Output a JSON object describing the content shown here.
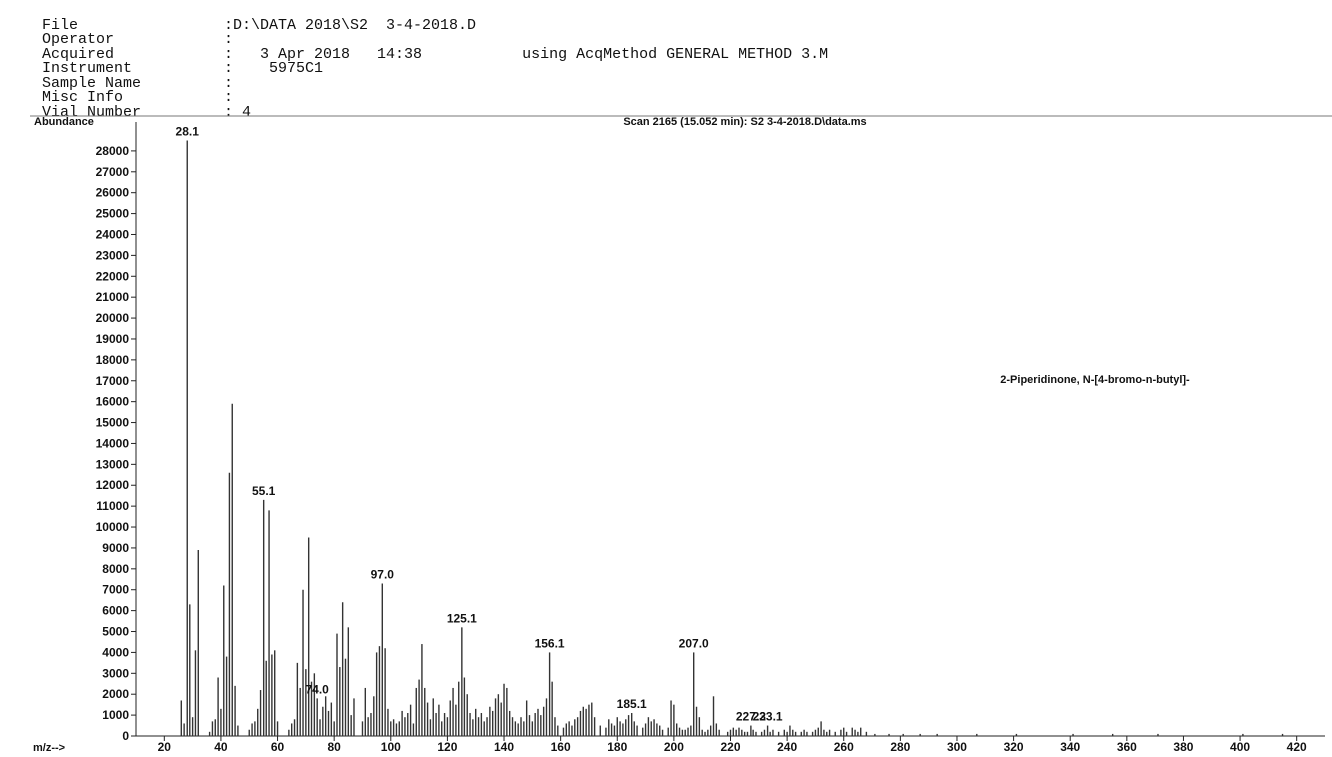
{
  "header": {
    "file": {
      "key": "File",
      "value": ":D:\\DATA 2018\\S2  3-4-2018.D"
    },
    "operator": {
      "key": "Operator",
      "value": ":"
    },
    "acquired": {
      "key": "Acquired",
      "value": ":   3 Apr 2018   14:38",
      "method": "using AcqMethod GENERAL METHOD 3.M"
    },
    "instrument": {
      "key": "Instrument",
      "value": ":    5975C1"
    },
    "sample_name": {
      "key": "Sample Name",
      "value": ":"
    },
    "misc_info": {
      "key": "Misc Info",
      "value": ":"
    },
    "vial_number": {
      "key": "Vial Number",
      "value": ": 4"
    }
  },
  "chart_data": {
    "type": "bar",
    "title": "Scan 2165 (15.052 min): S2  3-4-2018.D\\data.ms",
    "ylabel": "Abundance",
    "xlabel": "m/z-->",
    "annotation": "2-Piperidinone, N-[4-bromo-n-butyl]-",
    "xlim": [
      10,
      430
    ],
    "ylim": [
      0,
      29000
    ],
    "xticks": [
      20,
      40,
      60,
      80,
      100,
      120,
      140,
      160,
      180,
      200,
      220,
      240,
      260,
      280,
      300,
      320,
      340,
      360,
      380,
      400,
      420
    ],
    "yticks": [
      0,
      1000,
      2000,
      3000,
      4000,
      5000,
      6000,
      7000,
      8000,
      9000,
      10000,
      11000,
      12000,
      13000,
      14000,
      15000,
      16000,
      17000,
      18000,
      19000,
      20000,
      21000,
      22000,
      23000,
      24000,
      25000,
      26000,
      27000,
      28000
    ],
    "peak_labels": [
      {
        "mz": 28.1,
        "text": "28.1"
      },
      {
        "mz": 55.1,
        "text": "55.1"
      },
      {
        "mz": 74.0,
        "text": "74.0"
      },
      {
        "mz": 97.0,
        "text": "97.0"
      },
      {
        "mz": 125.1,
        "text": "125.1"
      },
      {
        "mz": 156.1,
        "text": "156.1"
      },
      {
        "mz": 185.1,
        "text": "185.1"
      },
      {
        "mz": 207.0,
        "text": "207.0"
      },
      {
        "mz": 227.2,
        "text": "227.2"
      },
      {
        "mz": 233.1,
        "text": "233.1"
      }
    ],
    "peaks": [
      {
        "mz": 26,
        "abundance": 1700
      },
      {
        "mz": 27,
        "abundance": 600
      },
      {
        "mz": 28.1,
        "abundance": 28500
      },
      {
        "mz": 29,
        "abundance": 6300
      },
      {
        "mz": 30,
        "abundance": 900
      },
      {
        "mz": 31,
        "abundance": 4100
      },
      {
        "mz": 32,
        "abundance": 8900
      },
      {
        "mz": 36,
        "abundance": 200
      },
      {
        "mz": 37,
        "abundance": 700
      },
      {
        "mz": 38,
        "abundance": 800
      },
      {
        "mz": 39,
        "abundance": 2800
      },
      {
        "mz": 40,
        "abundance": 1300
      },
      {
        "mz": 41,
        "abundance": 7200
      },
      {
        "mz": 42,
        "abundance": 3800
      },
      {
        "mz": 43,
        "abundance": 12600
      },
      {
        "mz": 44,
        "abundance": 15900
      },
      {
        "mz": 45,
        "abundance": 2400
      },
      {
        "mz": 46,
        "abundance": 500
      },
      {
        "mz": 50,
        "abundance": 300
      },
      {
        "mz": 51,
        "abundance": 600
      },
      {
        "mz": 52,
        "abundance": 700
      },
      {
        "mz": 53,
        "abundance": 1300
      },
      {
        "mz": 54,
        "abundance": 2200
      },
      {
        "mz": 55.1,
        "abundance": 11300
      },
      {
        "mz": 56,
        "abundance": 3600
      },
      {
        "mz": 57,
        "abundance": 10800
      },
      {
        "mz": 58,
        "abundance": 3900
      },
      {
        "mz": 59,
        "abundance": 4100
      },
      {
        "mz": 60,
        "abundance": 700
      },
      {
        "mz": 64,
        "abundance": 300
      },
      {
        "mz": 65,
        "abundance": 600
      },
      {
        "mz": 66,
        "abundance": 800
      },
      {
        "mz": 67,
        "abundance": 3500
      },
      {
        "mz": 68,
        "abundance": 2300
      },
      {
        "mz": 69,
        "abundance": 7000
      },
      {
        "mz": 70,
        "abundance": 3200
      },
      {
        "mz": 71,
        "abundance": 9500
      },
      {
        "mz": 72,
        "abundance": 2600
      },
      {
        "mz": 73,
        "abundance": 3000
      },
      {
        "mz": 74.0,
        "abundance": 1800
      },
      {
        "mz": 75,
        "abundance": 800
      },
      {
        "mz": 76,
        "abundance": 1400
      },
      {
        "mz": 77,
        "abundance": 1900
      },
      {
        "mz": 78,
        "abundance": 1200
      },
      {
        "mz": 79,
        "abundance": 1600
      },
      {
        "mz": 80,
        "abundance": 700
      },
      {
        "mz": 81,
        "abundance": 4900
      },
      {
        "mz": 82,
        "abundance": 3300
      },
      {
        "mz": 83,
        "abundance": 6400
      },
      {
        "mz": 84,
        "abundance": 3700
      },
      {
        "mz": 85,
        "abundance": 5200
      },
      {
        "mz": 86,
        "abundance": 1000
      },
      {
        "mz": 87,
        "abundance": 1800
      },
      {
        "mz": 90,
        "abundance": 700
      },
      {
        "mz": 91,
        "abundance": 2300
      },
      {
        "mz": 92,
        "abundance": 900
      },
      {
        "mz": 93,
        "abundance": 1100
      },
      {
        "mz": 94,
        "abundance": 1900
      },
      {
        "mz": 95,
        "abundance": 4000
      },
      {
        "mz": 96,
        "abundance": 4300
      },
      {
        "mz": 97.0,
        "abundance": 7300
      },
      {
        "mz": 98,
        "abundance": 4200
      },
      {
        "mz": 99,
        "abundance": 1300
      },
      {
        "mz": 100,
        "abundance": 700
      },
      {
        "mz": 101,
        "abundance": 800
      },
      {
        "mz": 102,
        "abundance": 600
      },
      {
        "mz": 103,
        "abundance": 700
      },
      {
        "mz": 104,
        "abundance": 1200
      },
      {
        "mz": 105,
        "abundance": 900
      },
      {
        "mz": 106,
        "abundance": 1100
      },
      {
        "mz": 107,
        "abundance": 1500
      },
      {
        "mz": 108,
        "abundance": 600
      },
      {
        "mz": 109,
        "abundance": 2300
      },
      {
        "mz": 110,
        "abundance": 2700
      },
      {
        "mz": 111,
        "abundance": 4400
      },
      {
        "mz": 112,
        "abundance": 2300
      },
      {
        "mz": 113,
        "abundance": 1600
      },
      {
        "mz": 114,
        "abundance": 800
      },
      {
        "mz": 115,
        "abundance": 1800
      },
      {
        "mz": 116,
        "abundance": 1100
      },
      {
        "mz": 117,
        "abundance": 1500
      },
      {
        "mz": 118,
        "abundance": 700
      },
      {
        "mz": 119,
        "abundance": 1100
      },
      {
        "mz": 120,
        "abundance": 900
      },
      {
        "mz": 121,
        "abundance": 1700
      },
      {
        "mz": 122,
        "abundance": 2300
      },
      {
        "mz": 123,
        "abundance": 1500
      },
      {
        "mz": 124,
        "abundance": 2600
      },
      {
        "mz": 125.1,
        "abundance": 5200
      },
      {
        "mz": 126,
        "abundance": 2800
      },
      {
        "mz": 127,
        "abundance": 2000
      },
      {
        "mz": 128,
        "abundance": 1100
      },
      {
        "mz": 129,
        "abundance": 800
      },
      {
        "mz": 130,
        "abundance": 1300
      },
      {
        "mz": 131,
        "abundance": 900
      },
      {
        "mz": 132,
        "abundance": 1100
      },
      {
        "mz": 133,
        "abundance": 700
      },
      {
        "mz": 134,
        "abundance": 900
      },
      {
        "mz": 135,
        "abundance": 1400
      },
      {
        "mz": 136,
        "abundance": 1200
      },
      {
        "mz": 137,
        "abundance": 1800
      },
      {
        "mz": 138,
        "abundance": 2000
      },
      {
        "mz": 139,
        "abundance": 1600
      },
      {
        "mz": 140,
        "abundance": 2500
      },
      {
        "mz": 141,
        "abundance": 2300
      },
      {
        "mz": 142,
        "abundance": 1200
      },
      {
        "mz": 143,
        "abundance": 900
      },
      {
        "mz": 144,
        "abundance": 700
      },
      {
        "mz": 145,
        "abundance": 600
      },
      {
        "mz": 146,
        "abundance": 900
      },
      {
        "mz": 147,
        "abundance": 700
      },
      {
        "mz": 148,
        "abundance": 1700
      },
      {
        "mz": 149,
        "abundance": 1000
      },
      {
        "mz": 150,
        "abundance": 700
      },
      {
        "mz": 151,
        "abundance": 1100
      },
      {
        "mz": 152,
        "abundance": 1300
      },
      {
        "mz": 153,
        "abundance": 1000
      },
      {
        "mz": 154,
        "abundance": 1400
      },
      {
        "mz": 155,
        "abundance": 1800
      },
      {
        "mz": 156.1,
        "abundance": 4000
      },
      {
        "mz": 157,
        "abundance": 2600
      },
      {
        "mz": 158,
        "abundance": 900
      },
      {
        "mz": 159,
        "abundance": 500
      },
      {
        "mz": 161,
        "abundance": 400
      },
      {
        "mz": 162,
        "abundance": 600
      },
      {
        "mz": 163,
        "abundance": 700
      },
      {
        "mz": 164,
        "abundance": 500
      },
      {
        "mz": 165,
        "abundance": 800
      },
      {
        "mz": 166,
        "abundance": 900
      },
      {
        "mz": 167,
        "abundance": 1200
      },
      {
        "mz": 168,
        "abundance": 1400
      },
      {
        "mz": 169,
        "abundance": 1300
      },
      {
        "mz": 170,
        "abundance": 1500
      },
      {
        "mz": 171,
        "abundance": 1600
      },
      {
        "mz": 172,
        "abundance": 900
      },
      {
        "mz": 174,
        "abundance": 500
      },
      {
        "mz": 176,
        "abundance": 400
      },
      {
        "mz": 177,
        "abundance": 800
      },
      {
        "mz": 178,
        "abundance": 600
      },
      {
        "mz": 179,
        "abundance": 500
      },
      {
        "mz": 180,
        "abundance": 900
      },
      {
        "mz": 181,
        "abundance": 700
      },
      {
        "mz": 182,
        "abundance": 600
      },
      {
        "mz": 183,
        "abundance": 800
      },
      {
        "mz": 184,
        "abundance": 1000
      },
      {
        "mz": 185.1,
        "abundance": 1100
      },
      {
        "mz": 186,
        "abundance": 700
      },
      {
        "mz": 187,
        "abundance": 500
      },
      {
        "mz": 189,
        "abundance": 400
      },
      {
        "mz": 190,
        "abundance": 600
      },
      {
        "mz": 191,
        "abundance": 900
      },
      {
        "mz": 192,
        "abundance": 700
      },
      {
        "mz": 193,
        "abundance": 800
      },
      {
        "mz": 194,
        "abundance": 600
      },
      {
        "mz": 195,
        "abundance": 500
      },
      {
        "mz": 196,
        "abundance": 300
      },
      {
        "mz": 198,
        "abundance": 400
      },
      {
        "mz": 199,
        "abundance": 1700
      },
      {
        "mz": 200,
        "abundance": 1500
      },
      {
        "mz": 201,
        "abundance": 600
      },
      {
        "mz": 202,
        "abundance": 400
      },
      {
        "mz": 203,
        "abundance": 300
      },
      {
        "mz": 204,
        "abundance": 300
      },
      {
        "mz": 205,
        "abundance": 400
      },
      {
        "mz": 206,
        "abundance": 500
      },
      {
        "mz": 207.0,
        "abundance": 4000
      },
      {
        "mz": 208,
        "abundance": 1400
      },
      {
        "mz": 209,
        "abundance": 900
      },
      {
        "mz": 210,
        "abundance": 300
      },
      {
        "mz": 211,
        "abundance": 200
      },
      {
        "mz": 212,
        "abundance": 300
      },
      {
        "mz": 213,
        "abundance": 500
      },
      {
        "mz": 214,
        "abundance": 1900
      },
      {
        "mz": 215,
        "abundance": 600
      },
      {
        "mz": 216,
        "abundance": 300
      },
      {
        "mz": 219,
        "abundance": 200
      },
      {
        "mz": 220,
        "abundance": 300
      },
      {
        "mz": 221,
        "abundance": 400
      },
      {
        "mz": 222,
        "abundance": 300
      },
      {
        "mz": 223,
        "abundance": 400
      },
      {
        "mz": 224,
        "abundance": 300
      },
      {
        "mz": 225,
        "abundance": 200
      },
      {
        "mz": 226,
        "abundance": 200
      },
      {
        "mz": 227.2,
        "abundance": 500
      },
      {
        "mz": 228,
        "abundance": 300
      },
      {
        "mz": 229,
        "abundance": 200
      },
      {
        "mz": 231,
        "abundance": 200
      },
      {
        "mz": 232,
        "abundance": 300
      },
      {
        "mz": 233.1,
        "abundance": 500
      },
      {
        "mz": 234,
        "abundance": 200
      },
      {
        "mz": 235,
        "abundance": 300
      },
      {
        "mz": 237,
        "abundance": 200
      },
      {
        "mz": 239,
        "abundance": 300
      },
      {
        "mz": 240,
        "abundance": 200
      },
      {
        "mz": 241,
        "abundance": 500
      },
      {
        "mz": 242,
        "abundance": 300
      },
      {
        "mz": 243,
        "abundance": 200
      },
      {
        "mz": 245,
        "abundance": 200
      },
      {
        "mz": 246,
        "abundance": 300
      },
      {
        "mz": 247,
        "abundance": 200
      },
      {
        "mz": 249,
        "abundance": 200
      },
      {
        "mz": 250,
        "abundance": 300
      },
      {
        "mz": 251,
        "abundance": 400
      },
      {
        "mz": 252,
        "abundance": 700
      },
      {
        "mz": 253,
        "abundance": 300
      },
      {
        "mz": 254,
        "abundance": 200
      },
      {
        "mz": 255,
        "abundance": 300
      },
      {
        "mz": 257,
        "abundance": 200
      },
      {
        "mz": 259,
        "abundance": 300
      },
      {
        "mz": 260,
        "abundance": 400
      },
      {
        "mz": 261,
        "abundance": 200
      },
      {
        "mz": 263,
        "abundance": 400
      },
      {
        "mz": 264,
        "abundance": 300
      },
      {
        "mz": 265,
        "abundance": 200
      },
      {
        "mz": 266,
        "abundance": 400
      },
      {
        "mz": 268,
        "abundance": 200
      },
      {
        "mz": 271,
        "abundance": 100
      },
      {
        "mz": 276,
        "abundance": 100
      },
      {
        "mz": 281,
        "abundance": 100
      },
      {
        "mz": 287,
        "abundance": 100
      },
      {
        "mz": 293,
        "abundance": 100
      },
      {
        "mz": 307,
        "abundance": 100
      },
      {
        "mz": 321,
        "abundance": 100
      },
      {
        "mz": 341,
        "abundance": 100
      },
      {
        "mz": 355,
        "abundance": 100
      },
      {
        "mz": 371,
        "abundance": 100
      },
      {
        "mz": 401,
        "abundance": 100
      },
      {
        "mz": 415,
        "abundance": 100
      }
    ]
  }
}
